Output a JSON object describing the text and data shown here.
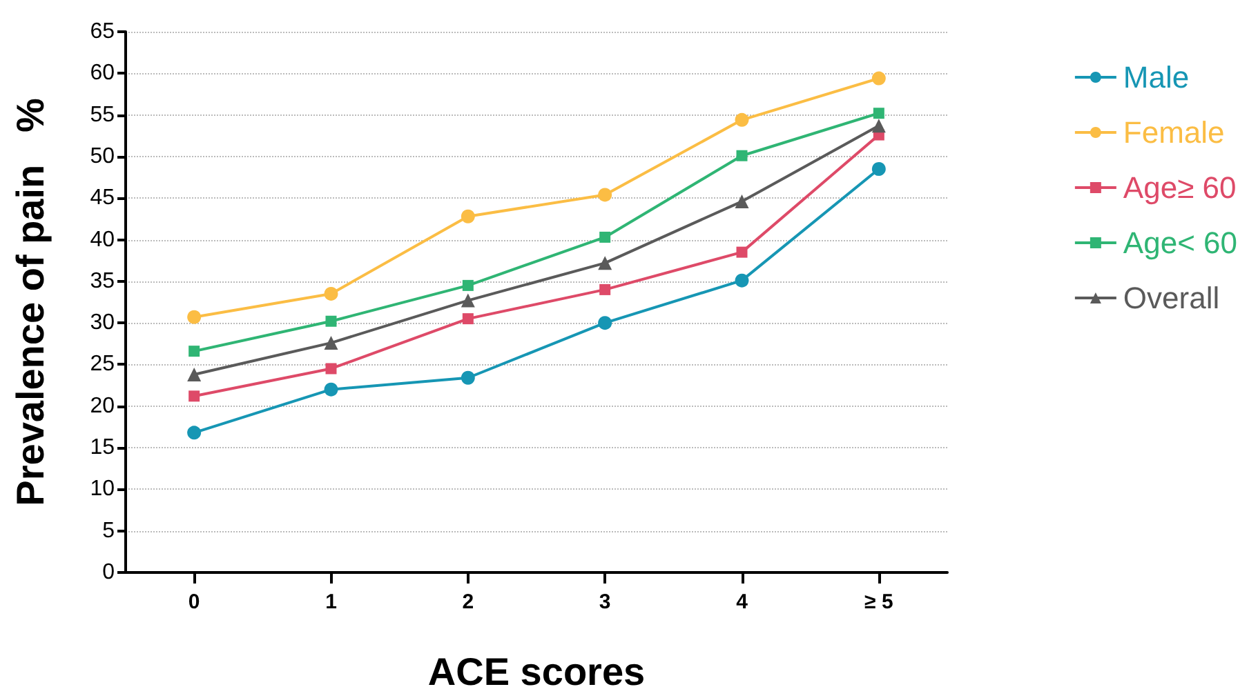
{
  "chart_data": {
    "type": "line",
    "xlabel": "ACE scores",
    "ylabel": "Prevalence of pain   %",
    "categories": [
      "0",
      "1",
      "2",
      "3",
      "4",
      "≥ 5"
    ],
    "ylim": [
      0,
      65
    ],
    "yticks": [
      0,
      5,
      10,
      15,
      20,
      25,
      30,
      35,
      40,
      45,
      50,
      55,
      60,
      65
    ],
    "grid": "y",
    "legend": "right",
    "line_style": "solid",
    "series": [
      {
        "name": "Male",
        "color": "#1696b4",
        "marker": "circle",
        "values": [
          16.8,
          22.0,
          23.4,
          30.0,
          35.1,
          48.5
        ]
      },
      {
        "name": "Female",
        "color": "#fbbd44",
        "marker": "circle",
        "values": [
          30.7,
          33.5,
          42.8,
          45.4,
          54.4,
          59.4
        ]
      },
      {
        "name": "Age≥ 60",
        "color": "#de4a68",
        "marker": "square",
        "values": [
          21.2,
          24.5,
          30.5,
          34.0,
          38.5,
          52.6
        ]
      },
      {
        "name": "Age< 60",
        "color": "#2fb574",
        "marker": "square",
        "values": [
          26.6,
          30.2,
          34.5,
          40.3,
          50.1,
          55.2
        ]
      },
      {
        "name": "Overall",
        "color": "#5a5a5a",
        "marker": "triangle",
        "values": [
          23.8,
          27.6,
          32.7,
          37.2,
          44.6,
          53.7
        ]
      }
    ]
  }
}
